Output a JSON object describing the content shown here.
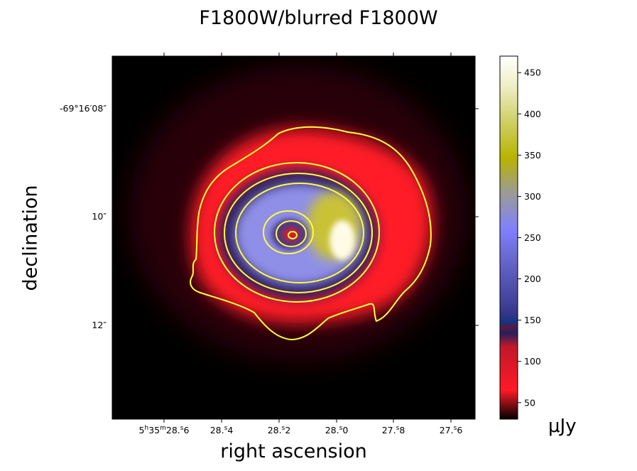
{
  "chart_data": {
    "type": "heatmap",
    "title": "F1800W/blurred F1800W",
    "xlabel": "right ascension",
    "ylabel": "declination",
    "colorbar_label": "μJy",
    "colormap": "gist_stern-like (black → red → dark blue → blue/lavender → olive/yellow → white)",
    "colorbar_range": [
      30,
      470
    ],
    "colorbar_ticks": [
      "50",
      "100",
      "150",
      "200",
      "250",
      "300",
      "350",
      "400",
      "450"
    ],
    "colorbar_tick_values": [
      50,
      100,
      150,
      200,
      250,
      300,
      350,
      400,
      450
    ],
    "x_ticks": [
      {
        "h": "5",
        "m": "35",
        "s": "28.6"
      },
      {
        "s": "28.4"
      },
      {
        "s": "28.2"
      },
      {
        "s": "28.0"
      },
      {
        "s": "27.8"
      },
      {
        "s": "27.6"
      }
    ],
    "y_ticks": [
      "-69°16′08″",
      "10″",
      "12″"
    ],
    "contours": "yellow contour lines at several flux levels",
    "features": {
      "peak_location": "east-of-center crescent (near RA 27.95s)",
      "peak_value": 460,
      "central_compact_source": "small ring near RA 28.15s, Dec 10.3″"
    },
    "colors": {
      "contour": "#ffff3c",
      "background": "#000000"
    }
  }
}
